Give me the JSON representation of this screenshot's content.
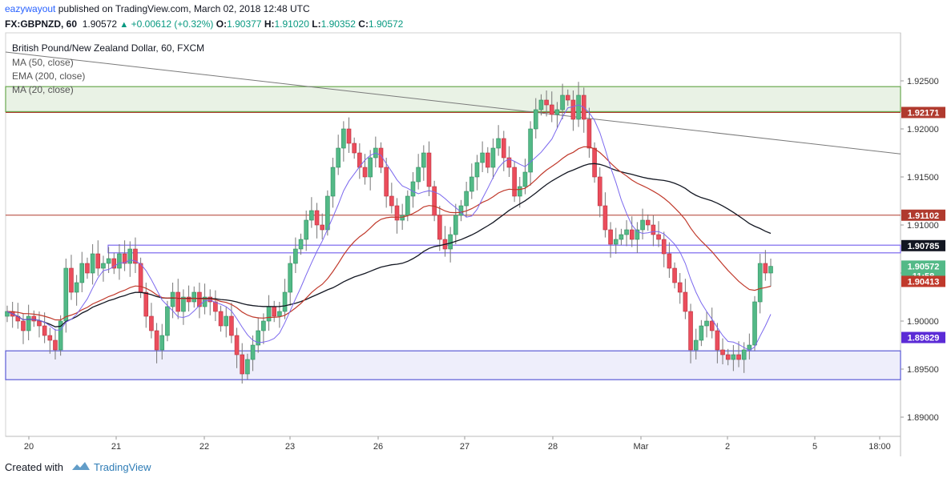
{
  "header": {
    "author": "eazywayout",
    "published_text": "published on TradingView.com, March 02, 2018 12:48 UTC",
    "symbol": "FX:GBPNZD, 60",
    "last": "1.90572",
    "change": "+0.00612 (+0.32%)",
    "o_label": "O:",
    "o_value": "1.90377",
    "h_label": "H:",
    "h_value": "1.91020",
    "l_label": "L:",
    "l_value": "1.90352",
    "c_label": "C:",
    "c_value": "1.90572"
  },
  "footer": {
    "created_with": "Created with",
    "brand": "TradingView"
  },
  "colors": {
    "up": "#53b987",
    "down": "#eb4d5c",
    "ma50": "#131722",
    "ema200": "#c0392b",
    "ma20": "#7b68ee",
    "resistance": "#6aa84f",
    "support": "#5b5bd6",
    "redline": "#b03a2e",
    "trendline": "#7a7a7a"
  },
  "chart_data": {
    "type": "candlestick",
    "title": "British Pound/New Zealand Dollar, 60, FXCM",
    "indicators": [
      "MA (50, close)",
      "EMA (200, close)",
      "MA (20, close)"
    ],
    "y_ticks": [
      "1.92500",
      "1.92000",
      "1.91500",
      "1.91000",
      "1.90500",
      "1.90000",
      "1.89500",
      "1.89000"
    ],
    "ylim": [
      1.888,
      1.93
    ],
    "x_ticks": [
      "20",
      "21",
      "22",
      "23",
      "26",
      "27",
      "28",
      "Mar",
      "2",
      "5",
      "18:00"
    ],
    "price_labels": [
      {
        "text": "1.92171",
        "value": 1.92171,
        "color": "#b03a2e"
      },
      {
        "text": "1.91102",
        "value": 1.91102,
        "color": "#b03a2e"
      },
      {
        "text": "1.90785",
        "value": 1.90785,
        "color": "#131722"
      },
      {
        "text": "1.90572",
        "value": 1.90572,
        "color": "#53b987"
      },
      {
        "text": "11:58",
        "value": 1.90472,
        "color": "#53b987"
      },
      {
        "text": "1.90413",
        "value": 1.90413,
        "color": "#c0392b"
      },
      {
        "text": "1.89829",
        "value": 1.89829,
        "color": "#5b2bd6"
      }
    ],
    "zones": [
      {
        "name": "resistance",
        "from": 1.9218,
        "to": 1.9244
      },
      {
        "name": "support",
        "from": 1.8939,
        "to": 1.8969
      }
    ],
    "hlines": [
      1.92171,
      1.91102
    ],
    "zone_box": {
      "from": 1.9071,
      "to": 1.9079
    },
    "trendline": {
      "from": 1.928,
      "to": 1.9174
    },
    "candles_close": [
      1.901,
      1.9005,
      1.9,
      1.899,
      1.9005,
      1.9,
      1.8995,
      1.8985,
      1.898,
      1.897,
      1.9,
      1.9055,
      1.903,
      1.904,
      1.906,
      1.905,
      1.907,
      1.9055,
      1.906,
      1.9065,
      1.9055,
      1.907,
      1.906,
      1.9075,
      1.906,
      1.903,
      1.9005,
      1.899,
      1.897,
      1.8985,
      1.9015,
      1.903,
      1.901,
      1.9025,
      1.902,
      1.903,
      1.9015,
      1.9025,
      1.902,
      1.901,
      1.8995,
      1.9005,
      1.8985,
      1.8965,
      1.8945,
      1.896,
      1.8975,
      1.899,
      1.9,
      1.9015,
      1.9005,
      1.901,
      1.903,
      1.906,
      1.9075,
      1.9085,
      1.9105,
      1.9115,
      1.91,
      1.9095,
      1.913,
      1.916,
      1.918,
      1.92,
      1.9185,
      1.9175,
      1.916,
      1.915,
      1.917,
      1.918,
      1.916,
      1.913,
      1.912,
      1.9105,
      1.911,
      1.913,
      1.9145,
      1.916,
      1.9175,
      1.914,
      1.911,
      1.9085,
      1.9075,
      1.909,
      1.911,
      1.912,
      1.9135,
      1.915,
      1.9165,
      1.9175,
      1.916,
      1.918,
      1.919,
      1.917,
      1.916,
      1.913,
      1.914,
      1.9155,
      1.92,
      1.922,
      1.923,
      1.9225,
      1.9215,
      1.922,
      1.9235,
      1.923,
      1.921,
      1.9235,
      1.921,
      1.918,
      1.915,
      1.912,
      1.9095,
      1.908,
      1.9085,
      1.909,
      1.9095,
      1.9085,
      1.9095,
      1.9105,
      1.91,
      1.909,
      1.9085,
      1.907,
      1.9055,
      1.904,
      1.903,
      1.901,
      1.897,
      1.898,
      1.8995,
      1.9,
      1.899,
      1.897,
      1.8965,
      1.896,
      1.8965,
      1.896,
      1.897,
      1.8975,
      1.902,
      1.906,
      1.905,
      1.9057
    ]
  }
}
